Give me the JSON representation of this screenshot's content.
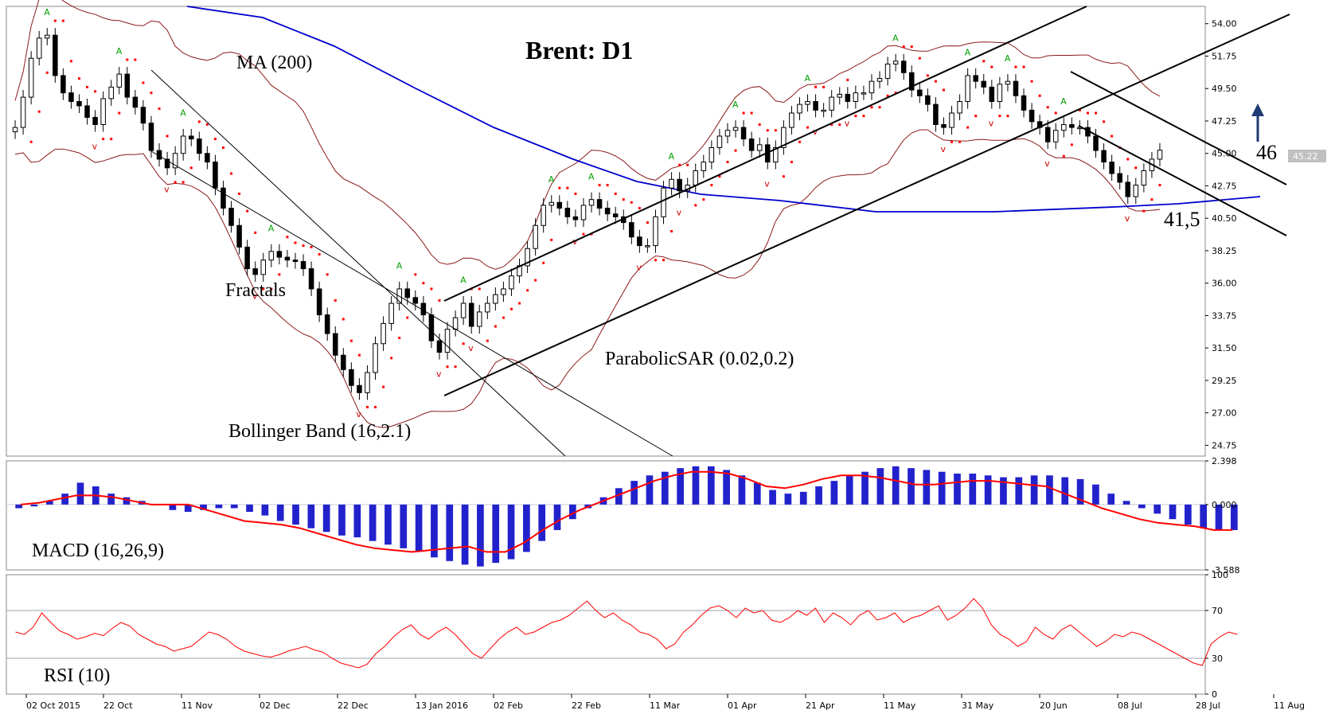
{
  "chart_data": [
    {
      "type": "line",
      "panel": "price",
      "title": "Brent: D1",
      "ylim": [
        24.0,
        55.2
      ],
      "yticks": [
        "54.00",
        "51.75",
        "49.50",
        "47.25",
        "45.00",
        "42.75",
        "40.50",
        "38.25",
        "36.00",
        "33.75",
        "31.50",
        "29.25",
        "27.00",
        "24.75"
      ],
      "current_price": "45.22",
      "annotations": {
        "ma": "MA (200)",
        "fractals": "Fractals",
        "psar": "ParabolicSAR (0.02,0.2)",
        "bollinger": "Bollinger Band (16,2.1)",
        "target": "46",
        "support": "41,5"
      },
      "price_series": [
        46.8,
        48.9,
        51.6,
        53.0,
        53.2,
        50.4,
        49.2,
        48.6,
        48.3,
        47.5,
        47.0,
        48.8,
        49.6,
        50.5,
        48.9,
        48.2,
        47.1,
        45.2,
        44.6,
        44.0,
        45.0,
        46.2,
        46.0,
        45.0,
        44.4,
        42.6,
        41.2,
        40.0,
        38.5,
        37.0,
        36.6,
        37.6,
        38.2,
        37.8,
        37.6,
        37.5,
        37.0,
        35.6,
        33.8,
        32.5,
        31.0,
        30.0,
        28.9,
        28.4,
        29.8,
        31.8,
        33.2,
        34.6,
        35.6,
        35.0,
        34.6,
        33.8,
        32.0,
        31.2,
        32.8,
        33.6,
        34.6,
        33.0,
        34.0,
        34.6,
        35.2,
        35.6,
        36.5,
        37.2,
        38.4,
        40.0,
        41.4,
        41.6,
        41.2,
        40.6,
        40.4,
        41.4,
        41.8,
        41.2,
        40.8,
        40.6,
        40.2,
        39.2,
        38.6,
        38.6,
        40.6,
        42.6,
        43.2,
        42.4,
        42.8,
        43.8,
        44.4,
        45.4,
        46.2,
        46.6,
        46.8,
        46.0,
        45.2,
        45.6,
        44.4,
        45.4,
        46.8,
        47.8,
        48.4,
        48.6,
        48.0,
        48.0,
        48.9,
        49.1,
        48.6,
        49.2,
        49.2,
        50.0,
        50.2,
        51.2,
        51.4,
        50.6,
        49.4,
        49.0,
        48.4,
        47.0,
        46.8,
        47.8,
        48.6,
        50.4,
        50.0,
        49.6,
        48.6,
        49.8,
        50.0,
        49.0,
        48.0,
        47.2,
        46.8,
        45.8,
        46.6,
        47.0,
        46.8,
        46.8,
        46.2,
        45.2,
        44.4,
        43.6,
        43.0,
        42.0,
        42.8,
        43.8,
        44.6,
        45.22
      ],
      "price_series_note": "daily closes read approximately from the candlestick chart",
      "channels": [
        "descending channel Nov–Jan",
        "ascending channel Jan–Jun",
        "descending channel Jun–Aug"
      ]
    },
    {
      "type": "bar",
      "panel": "macd",
      "label": "MACD (16,26,9)",
      "ylim": [
        -3.588,
        2.398
      ],
      "yticks": [
        "2.398",
        "0.000",
        "-3.588"
      ],
      "histogram": [
        -0.2,
        -0.1,
        0.2,
        0.6,
        1.2,
        1.0,
        0.6,
        0.4,
        0.2,
        0.0,
        -0.3,
        -0.4,
        -0.3,
        -0.2,
        -0.2,
        -0.4,
        -0.6,
        -0.9,
        -1.1,
        -1.3,
        -1.5,
        -1.7,
        -1.8,
        -2.0,
        -2.2,
        -2.4,
        -2.6,
        -2.9,
        -3.1,
        -3.3,
        -3.4,
        -3.2,
        -3.0,
        -2.6,
        -2.0,
        -1.4,
        -0.8,
        -0.2,
        0.4,
        0.9,
        1.3,
        1.6,
        1.8,
        2.0,
        2.1,
        2.1,
        1.9,
        1.6,
        1.2,
        0.8,
        0.6,
        0.7,
        1.0,
        1.3,
        1.6,
        1.8,
        2.0,
        2.1,
        2.0,
        1.9,
        1.8,
        1.7,
        1.7,
        1.6,
        1.5,
        1.5,
        1.6,
        1.6,
        1.5,
        1.4,
        1.1,
        0.6,
        0.2,
        -0.2,
        -0.5,
        -0.8,
        -1.1,
        -1.3,
        -1.4,
        -1.4
      ],
      "signal": [
        0.0,
        0.1,
        0.3,
        0.5,
        0.5,
        0.4,
        0.2,
        0.0,
        0.0,
        0.0,
        -0.3,
        -0.6,
        -0.9,
        -1.0,
        -1.1,
        -1.3,
        -1.6,
        -1.9,
        -2.2,
        -2.4,
        -2.5,
        -2.6,
        -2.5,
        -2.4,
        -2.3,
        -2.6,
        -2.6,
        -2.1,
        -1.4,
        -0.8,
        -0.3,
        0.1,
        0.5,
        0.9,
        1.3,
        1.6,
        1.8,
        1.8,
        1.7,
        1.4,
        1.0,
        0.9,
        1.1,
        1.4,
        1.6,
        1.6,
        1.5,
        1.3,
        1.1,
        1.1,
        1.2,
        1.3,
        1.3,
        1.2,
        1.1,
        1.0,
        0.6,
        0.2,
        -0.2,
        -0.5,
        -0.8,
        -1.0,
        -1.1,
        -1.2,
        -1.4,
        -1.4
      ]
    },
    {
      "type": "line",
      "panel": "rsi",
      "label": "RSI (10)",
      "ylim": [
        0,
        100
      ],
      "yticks": [
        "100",
        "70",
        "30",
        "0"
      ],
      "values": [
        52,
        50,
        56,
        68,
        60,
        53,
        50,
        46,
        48,
        51,
        49,
        55,
        60,
        57,
        50,
        46,
        42,
        40,
        36,
        38,
        40,
        46,
        52,
        50,
        46,
        40,
        36,
        34,
        32,
        31,
        33,
        36,
        38,
        40,
        37,
        35,
        30,
        26,
        24,
        22,
        25,
        34,
        40,
        48,
        54,
        58,
        50,
        46,
        52,
        56,
        50,
        42,
        34,
        30,
        38,
        46,
        52,
        56,
        50,
        52,
        56,
        60,
        62,
        66,
        72,
        78,
        70,
        64,
        68,
        62,
        58,
        52,
        50,
        46,
        38,
        42,
        52,
        58,
        66,
        72,
        74,
        70,
        64,
        72,
        68,
        70,
        62,
        60,
        64,
        70,
        66,
        72,
        60,
        68,
        64,
        58,
        66,
        70,
        62,
        64,
        68,
        60,
        64,
        66,
        70,
        74,
        62,
        66,
        72,
        80,
        72,
        58,
        50,
        46,
        40,
        44,
        56,
        50,
        46,
        54,
        58,
        52,
        46,
        40,
        44,
        50,
        48,
        52,
        50,
        46,
        42,
        38,
        34,
        30,
        26,
        24,
        42,
        48,
        52,
        50
      ]
    }
  ],
  "x_axis": {
    "labels": [
      "02 Oct 2015",
      "22 Oct",
      "11 Nov",
      "02 Dec",
      "22 Dec",
      "13 Jan 2016",
      "02 Feb",
      "22 Feb",
      "11 Mar",
      "01 Apr",
      "21 Apr",
      "11 May",
      "31 May",
      "20 Jun",
      "08 Jul",
      "28 Jul",
      "11 Aug"
    ]
  },
  "colors": {
    "ma": "#0000cc",
    "bollinger": "#8b1a1a",
    "psar": "#ff0000",
    "fractal_up": "#00a000",
    "fractal_down": "#cc0000",
    "macd_hist": "#2222cc",
    "signal": "#ff0000",
    "rsi": "#ff0000",
    "arrow": "#1f3b73"
  }
}
